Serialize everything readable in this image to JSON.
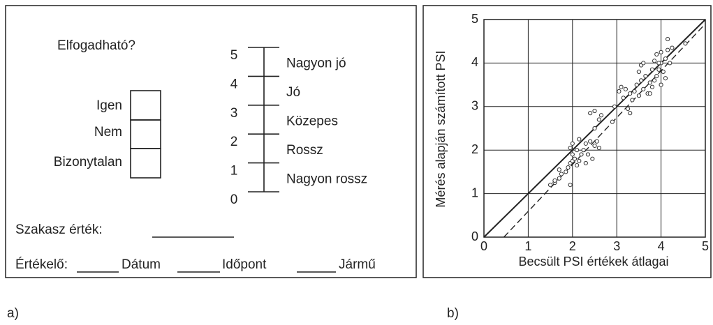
{
  "form": {
    "panel_label": "a)",
    "question": "Elfogadható?",
    "options": [
      "Igen",
      "Nem",
      "Bizonytalan"
    ],
    "scale_numbers": [
      "5",
      "4",
      "3",
      "2",
      "1",
      "0"
    ],
    "scale_labels": [
      "Nagyon jó",
      "Jó",
      "Közepes",
      "Rossz",
      "Nagyon rossz"
    ],
    "section_value": "Szakasz érték:",
    "footer": [
      "Értékelő:",
      "Dátum",
      "Időpont",
      "Jármű"
    ]
  },
  "chart_data": {
    "type": "scatter",
    "panel_label": "b)",
    "x_label": "Becsült PSI értékek átlagai",
    "y_label": "Mérés alapján számított PSI",
    "xlim": [
      0,
      5
    ],
    "ylim": [
      0,
      5
    ],
    "xticks": [
      0,
      1,
      2,
      3,
      4,
      5
    ],
    "yticks": [
      0,
      1,
      2,
      3,
      4,
      5
    ],
    "grid": true,
    "color": "#333333",
    "x": [
      1.5,
      1.6,
      1.6,
      1.7,
      1.75,
      1.7,
      1.85,
      1.9,
      1.95,
      1.95,
      2.0,
      2.0,
      1.95,
      2.0,
      2.05,
      2.1,
      2.1,
      2.15,
      2.15,
      2.2,
      2.25,
      2.3,
      2.3,
      2.35,
      2.4,
      2.45,
      2.4,
      2.5,
      2.5,
      2.55,
      2.6,
      2.6,
      2.65,
      2.5,
      2.9,
      2.95,
      3.05,
      3.1,
      3.15,
      3.2,
      3.25,
      3.3,
      3.3,
      3.35,
      3.4,
      3.45,
      3.5,
      3.5,
      3.55,
      3.55,
      3.6,
      3.6,
      3.65,
      3.7,
      3.75,
      3.8,
      3.8,
      3.85,
      3.85,
      3.9,
      3.9,
      3.95,
      4.0,
      4.0,
      4.0,
      4.05,
      4.1,
      4.1,
      4.15,
      4.15,
      4.2,
      4.25,
      4.55,
      3.75,
      3.95
    ],
    "values": [
      1.2,
      1.25,
      1.3,
      1.35,
      1.45,
      1.55,
      1.5,
      1.6,
      1.2,
      1.7,
      1.75,
      1.9,
      2.05,
      2.15,
      1.8,
      1.65,
      2.0,
      1.75,
      2.25,
      1.9,
      2.0,
      1.7,
      2.15,
      1.9,
      2.2,
      1.8,
      2.85,
      2.1,
      2.5,
      2.2,
      2.05,
      2.7,
      2.8,
      2.9,
      2.65,
      3.0,
      3.35,
      3.45,
      3.2,
      3.4,
      2.95,
      2.85,
      3.3,
      3.15,
      3.35,
      3.5,
      3.25,
      3.8,
      3.6,
      3.95,
      3.4,
      4.0,
      3.7,
      3.3,
      3.55,
      3.45,
      3.85,
      3.6,
      4.05,
      3.7,
      4.2,
      3.85,
      3.5,
      4.0,
      4.25,
      3.8,
      3.65,
      4.1,
      4.3,
      4.55,
      4.0,
      4.35,
      4.45,
      3.3,
      4.0
    ],
    "reference_lines": [
      {
        "style": "solid",
        "x": [
          0,
          5
        ],
        "y": [
          0,
          5
        ]
      },
      {
        "style": "dashed",
        "x": [
          0.45,
          5
        ],
        "y": [
          0,
          4.9
        ]
      }
    ]
  }
}
